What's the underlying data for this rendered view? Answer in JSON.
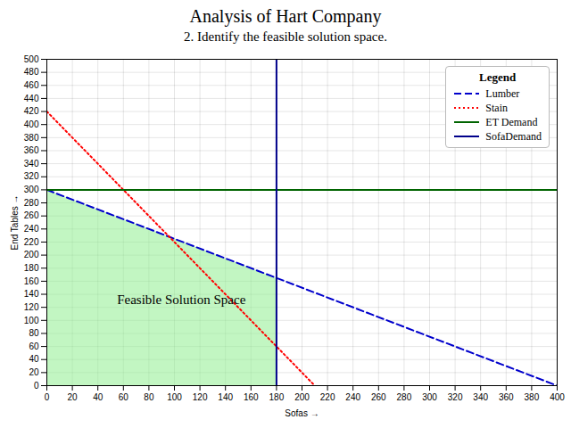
{
  "chart_data": {
    "type": "line",
    "title": "Analysis of Hart Company",
    "subtitle": "2. Identify the feasible solution space.",
    "xlabel": "Sofas",
    "ylabel": "End Tables",
    "xlim": [
      0,
      400
    ],
    "ylim": [
      0,
      500
    ],
    "xticks": [
      0,
      20,
      40,
      60,
      80,
      100,
      120,
      140,
      160,
      180,
      200,
      220,
      240,
      260,
      280,
      300,
      320,
      340,
      360,
      380,
      400
    ],
    "yticks": [
      0,
      20,
      40,
      60,
      80,
      100,
      120,
      140,
      160,
      180,
      200,
      220,
      240,
      260,
      280,
      300,
      320,
      340,
      360,
      380,
      400,
      420,
      440,
      460,
      480,
      500
    ],
    "grid": true,
    "legend": "upper right",
    "legend_title": "Legend",
    "series": [
      {
        "name": "Lumber",
        "color": "#0000CC",
        "line_style": "dashed",
        "x": [
          0,
          400
        ],
        "values": [
          300,
          0
        ]
      },
      {
        "name": "Stain",
        "color": "#FF0000",
        "line_style": "dotted",
        "x": [
          0,
          210
        ],
        "values": [
          420,
          0
        ]
      },
      {
        "name": "ET Demand",
        "color": "#006400",
        "line_style": "solid",
        "x": [
          0,
          400
        ],
        "values": [
          300,
          300
        ]
      },
      {
        "name": "SofaDemand",
        "color": "#00008B",
        "line_style": "solid",
        "x": [
          180,
          180
        ],
        "values": [
          0,
          500
        ]
      }
    ],
    "feasible_region": {
      "x": [
        0,
        0,
        180,
        180
      ],
      "y": [
        0,
        300,
        165,
        0
      ],
      "color": "#90EE90"
    },
    "annotations": [
      {
        "text": "Feasible Solution Space",
        "x": 55,
        "y": 125
      }
    ]
  }
}
